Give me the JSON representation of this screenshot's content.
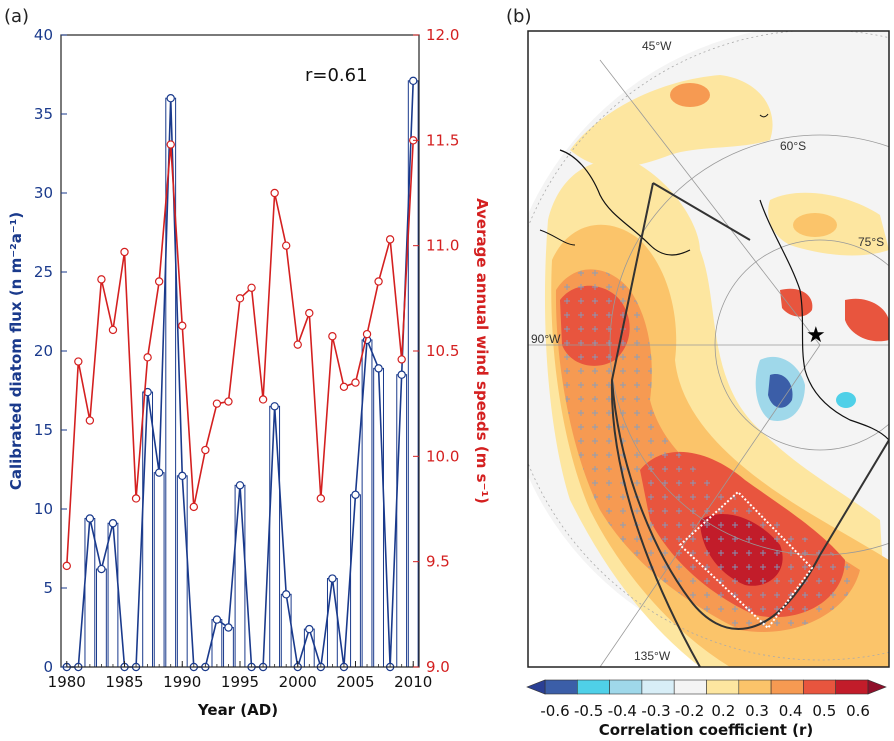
{
  "panel_a_label": "(a)",
  "panel_b_label": "(b)",
  "colors": {
    "diatom": "#1a3a8c",
    "wind": "#d42020",
    "frame": "#222222"
  },
  "chart_data": [
    {
      "type": "bar+line",
      "annotation": "r=0.61",
      "xlabel": "Year (AD)",
      "ylabel": "Calibrated diatom flux (n m⁻²a⁻¹)",
      "y2label": "Average annual wind speeds (m s⁻¹)",
      "xlim": [
        1979.5,
        2010.5
      ],
      "ylim": [
        0,
        40
      ],
      "y2lim": [
        9.0,
        12.0
      ],
      "xticks": [
        "1980",
        "1985",
        "1990",
        "1995",
        "2000",
        "2005",
        "2010"
      ],
      "yticks": [
        "0",
        "5",
        "10",
        "15",
        "20",
        "25",
        "30",
        "35",
        "40"
      ],
      "y2ticks": [
        "9.0",
        "9.5",
        "10.0",
        "10.5",
        "11.0",
        "11.5",
        "12.0"
      ],
      "x": [
        1980,
        1981,
        1982,
        1983,
        1984,
        1985,
        1986,
        1987,
        1988,
        1989,
        1990,
        1991,
        1992,
        1993,
        1994,
        1995,
        1996,
        1997,
        1998,
        1999,
        2000,
        2001,
        2002,
        2003,
        2004,
        2005,
        2006,
        2007,
        2008,
        2009,
        2010
      ],
      "series": [
        {
          "name": "Calibrated diatom flux",
          "axis": "left",
          "values": [
            0,
            0,
            9.4,
            6.2,
            9.1,
            0,
            0,
            17.4,
            12.3,
            36.0,
            12.1,
            0,
            0,
            3.0,
            2.5,
            11.5,
            0,
            0,
            16.5,
            4.6,
            0,
            2.4,
            0,
            5.6,
            0,
            10.9,
            20.7,
            18.9,
            0,
            18.5,
            37.1
          ]
        },
        {
          "name": "Average annual wind speeds",
          "axis": "right",
          "values": [
            9.48,
            10.45,
            10.17,
            10.84,
            10.6,
            10.97,
            9.8,
            10.47,
            10.83,
            11.48,
            10.62,
            9.76,
            10.03,
            10.25,
            10.26,
            10.75,
            10.8,
            10.27,
            11.25,
            11.0,
            10.53,
            10.68,
            9.8,
            10.57,
            10.33,
            10.35,
            10.58,
            10.83,
            11.03,
            10.46,
            11.5
          ]
        }
      ]
    },
    {
      "type": "heatmap",
      "subtype": "polar-stereographic correlation map",
      "xlabel": "Correlation coefficient (r)",
      "colorbar_ticks": [
        "-0.6",
        "-0.5",
        "-0.4",
        "-0.3",
        "-0.2",
        "0.2",
        "0.3",
        "0.4",
        "0.5",
        "0.6"
      ],
      "colorbar_colors": [
        "#3b5ea8",
        "#4fd0e8",
        "#9fd8ea",
        "#d8eef7",
        "#f4f4f4",
        "#fde6a0",
        "#fbc46a",
        "#f69a52",
        "#e8553e",
        "#c21c2a"
      ],
      "map_labels": [
        "45°W",
        "60°S",
        "75°S",
        "90°W",
        "135°W"
      ]
    }
  ]
}
